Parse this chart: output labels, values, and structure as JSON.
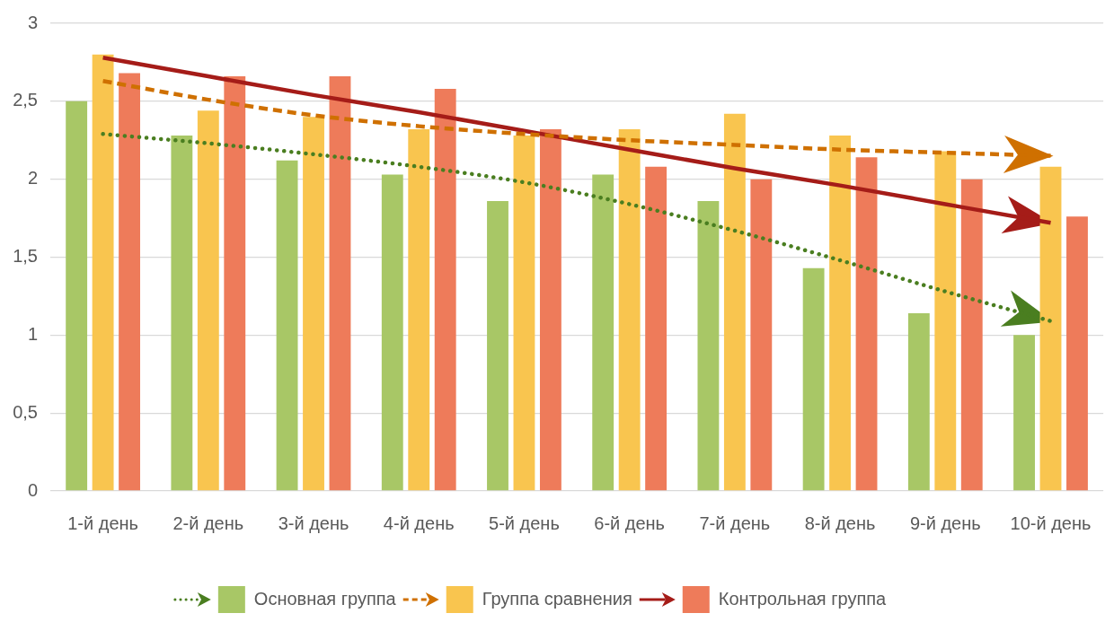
{
  "chart_data": {
    "type": "bar",
    "categories": [
      "1-й день",
      "2-й день",
      "3-й день",
      "4-й день",
      "5-й день",
      "6-й день",
      "7-й день",
      "8-й день",
      "9-й день",
      "10-й день"
    ],
    "series": [
      {
        "name": "Основная группа",
        "color": "#a8c766",
        "values": [
          2.5,
          2.28,
          2.12,
          2.03,
          1.86,
          2.03,
          1.86,
          1.43,
          1.14,
          1.0
        ]
      },
      {
        "name": "Группа сравнения",
        "color": "#f9c54f",
        "values": [
          2.8,
          2.44,
          2.4,
          2.32,
          2.28,
          2.32,
          2.42,
          2.28,
          2.18,
          2.08
        ]
      },
      {
        "name": "Контрольная группа",
        "color": "#ee7b5a",
        "values": [
          2.68,
          2.66,
          2.66,
          2.58,
          2.32,
          2.08,
          2.0,
          2.14,
          2.0,
          1.76
        ]
      },
      {
        "type": "line",
        "line_style": "dotted",
        "color": "#4a7e20",
        "x": [
          "1-й день",
          "2-й день",
          "3-й день",
          "4-й день",
          "5-й день",
          "6-й день",
          "7-й день",
          "8-й день",
          "9-й день",
          "10-й день"
        ],
        "values": [
          2.29,
          2.23,
          2.16,
          2.08,
          1.98,
          1.84,
          1.67,
          1.48,
          1.28,
          1.09
        ]
      },
      {
        "type": "line",
        "line_style": "dashed",
        "color": "#cf7000",
        "x": [
          "1-й день",
          "2-й день",
          "3-й день",
          "4-й день",
          "5-й день",
          "6-й день",
          "7-й день",
          "8-й день",
          "9-й день",
          "10-й день"
        ],
        "values": [
          2.63,
          2.51,
          2.41,
          2.34,
          2.29,
          2.25,
          2.22,
          2.19,
          2.17,
          2.15
        ]
      },
      {
        "type": "line",
        "line_style": "solid",
        "color": "#a51c18",
        "x": [
          "1-й день",
          "2-й день",
          "3-й день",
          "4-й день",
          "5-й день",
          "6-й день",
          "7-й день",
          "8-й день",
          "9-й день",
          "10-й день"
        ],
        "values": [
          2.78,
          2.66,
          2.54,
          2.43,
          2.31,
          2.19,
          2.07,
          1.96,
          1.84,
          1.72
        ]
      }
    ],
    "ylim": [
      0,
      3
    ],
    "yticks": [
      0,
      {
        "value": 0.5,
        "label": "0,5"
      },
      1,
      {
        "value": 1.5,
        "label": "1,5"
      },
      2,
      {
        "value": 2.5,
        "label": "2,5"
      },
      3
    ],
    "grid": "y",
    "legend": "bottom"
  }
}
